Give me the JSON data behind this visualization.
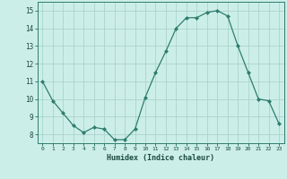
{
  "x": [
    0,
    1,
    2,
    3,
    4,
    5,
    6,
    7,
    8,
    9,
    10,
    11,
    12,
    13,
    14,
    15,
    16,
    17,
    18,
    19,
    20,
    21,
    22,
    23
  ],
  "y": [
    11.0,
    9.9,
    9.2,
    8.5,
    8.1,
    8.4,
    8.3,
    7.7,
    7.7,
    8.3,
    10.1,
    11.5,
    12.7,
    14.0,
    14.6,
    14.6,
    14.9,
    15.0,
    14.7,
    13.0,
    11.5,
    10.0,
    9.9,
    8.6
  ],
  "xlabel": "Humidex (Indice chaleur)",
  "ylim": [
    7.5,
    15.5
  ],
  "xlim": [
    -0.5,
    23.5
  ],
  "yticks": [
    8,
    9,
    10,
    11,
    12,
    13,
    14,
    15
  ],
  "xticks": [
    0,
    1,
    2,
    3,
    4,
    5,
    6,
    7,
    8,
    9,
    10,
    11,
    12,
    13,
    14,
    15,
    16,
    17,
    18,
    19,
    20,
    21,
    22,
    23
  ],
  "line_color": "#2e7d6e",
  "marker": "D",
  "marker_size": 2.0,
  "bg_color": "#cceee8",
  "grid_color": "#aad4cc",
  "tick_label_color": "#1a4a40",
  "xlabel_color": "#1a4a40",
  "spine_color": "#2e7d6e"
}
